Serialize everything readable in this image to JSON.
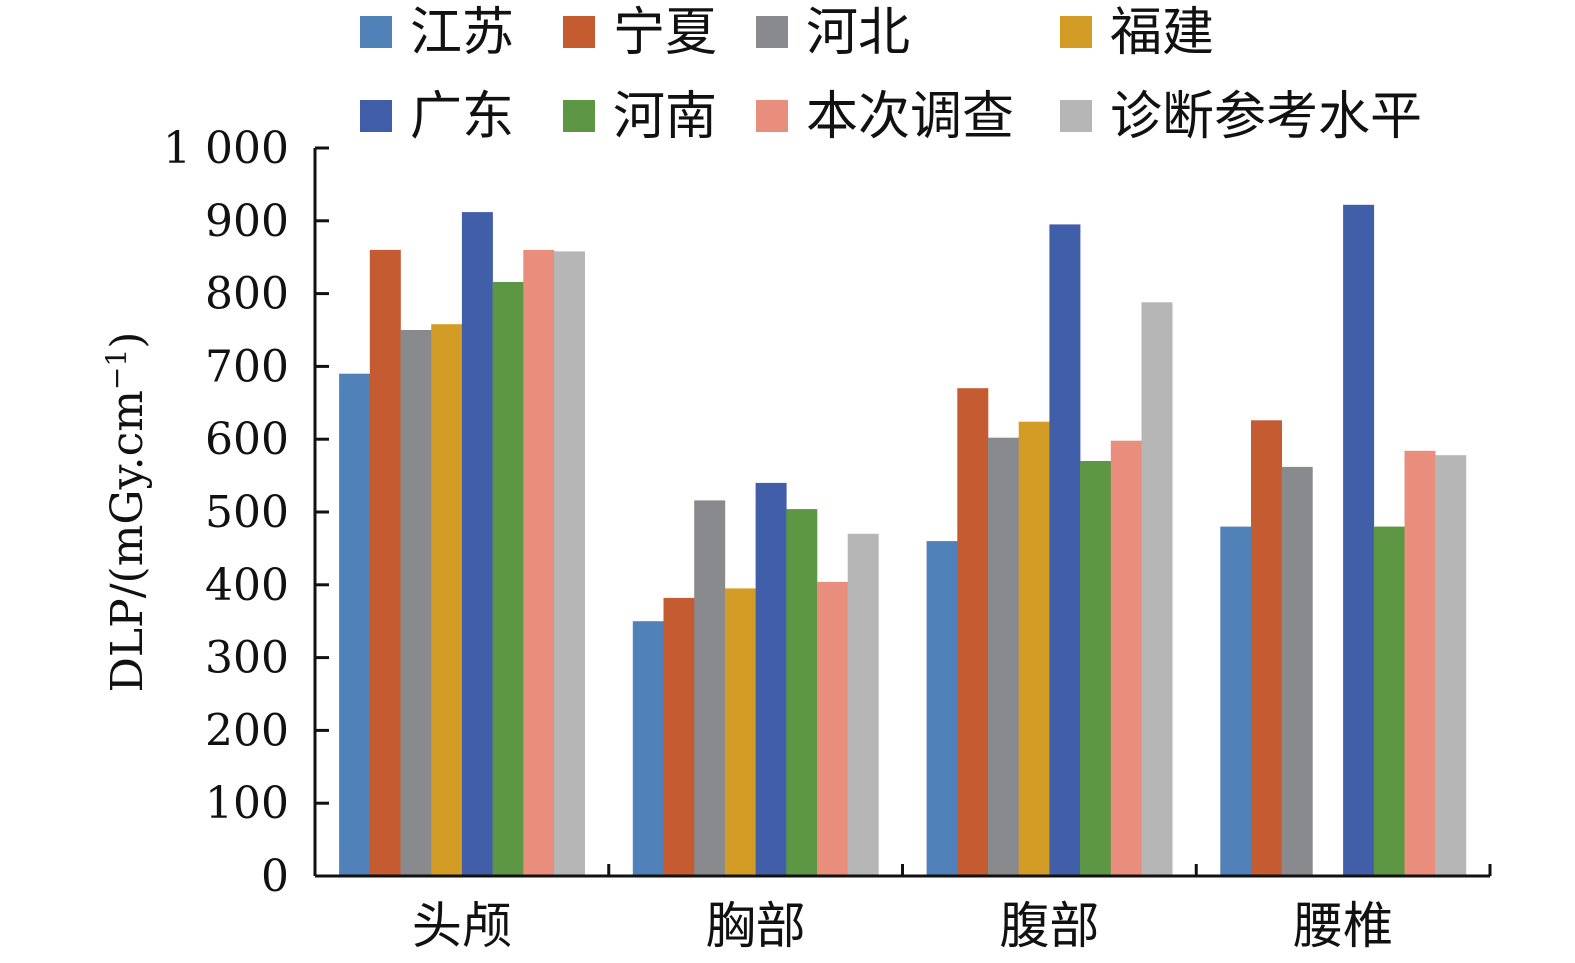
{
  "chart_data": {
    "type": "bar",
    "title": "",
    "xlabel": "",
    "ylabel": "DLP/(mGy.cm",
    "ylabel_superscript": "−1",
    "ylabel_close": ")",
    "ylim": [
      0,
      1000
    ],
    "yticks": [
      0,
      100,
      200,
      300,
      400,
      500,
      600,
      700,
      800,
      900,
      1000
    ],
    "ytick_labels": [
      "0",
      "100",
      "200",
      "300",
      "400",
      "500",
      "600",
      "700",
      "800",
      "900",
      "1 000"
    ],
    "categories": [
      "头颅",
      "胸部",
      "腹部",
      "腰椎"
    ],
    "grid": false,
    "legend_position": "top",
    "series": [
      {
        "name": "江苏",
        "color": "#5081b9",
        "values": [
          690,
          350,
          460,
          480
        ]
      },
      {
        "name": "宁夏",
        "color": "#c55b31",
        "values": [
          860,
          382,
          670,
          626
        ]
      },
      {
        "name": "河北",
        "color": "#898a8e",
        "values": [
          750,
          516,
          602,
          562
        ]
      },
      {
        "name": "福建",
        "color": "#d39c24",
        "values": [
          758,
          395,
          624,
          null
        ]
      },
      {
        "name": "广东",
        "color": "#415ea9",
        "values": [
          912,
          540,
          895,
          922
        ]
      },
      {
        "name": "河南",
        "color": "#5d9743",
        "values": [
          816,
          504,
          570,
          480
        ]
      },
      {
        "name": "本次调查",
        "color": "#e98e7d",
        "values": [
          860,
          404,
          598,
          584
        ]
      },
      {
        "name": "诊断参考水平",
        "color": "#b6b6b6",
        "values": [
          858,
          470,
          788,
          578
        ]
      }
    ]
  }
}
